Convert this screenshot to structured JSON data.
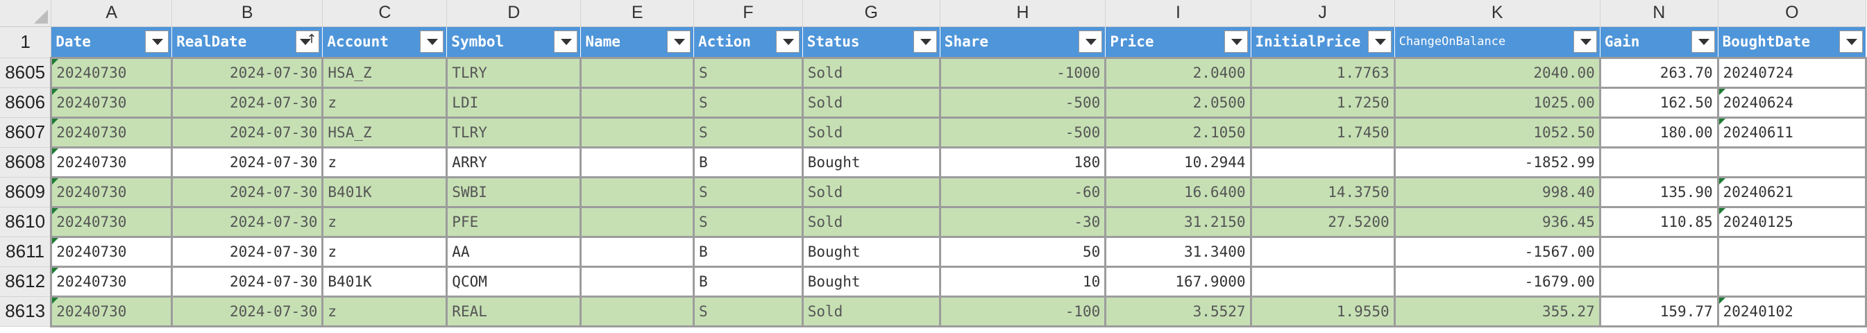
{
  "columns": [
    "A",
    "B",
    "C",
    "D",
    "E",
    "F",
    "G",
    "H",
    "I",
    "J",
    "K",
    "N",
    "O"
  ],
  "header_row_num": "1",
  "fields": [
    {
      "label": "Date",
      "sorted": false,
      "small": false
    },
    {
      "label": "RealDate",
      "sorted": true,
      "small": false
    },
    {
      "label": "Account",
      "sorted": false,
      "small": false
    },
    {
      "label": "Symbol",
      "sorted": false,
      "small": false
    },
    {
      "label": "Name",
      "sorted": false,
      "small": false
    },
    {
      "label": "Action",
      "sorted": false,
      "small": false
    },
    {
      "label": "Status",
      "sorted": false,
      "small": false
    },
    {
      "label": "Share",
      "sorted": false,
      "small": false
    },
    {
      "label": "Price",
      "sorted": false,
      "small": false
    },
    {
      "label": "InitialPrice",
      "sorted": false,
      "small": false
    },
    {
      "label": "ChangeOnBalance",
      "sorted": false,
      "small": true
    },
    {
      "label": "Gain",
      "sorted": false,
      "small": false
    },
    {
      "label": "BoughtDate",
      "sorted": false,
      "small": false
    }
  ],
  "rows": [
    {
      "num": "8605",
      "green": true,
      "date": "20240730",
      "realdate": "2024-07-30",
      "account": "HSA_Z",
      "symbol": "TLRY",
      "name": "",
      "action": "S",
      "status": "Sold",
      "share": "-1000",
      "price": "2.0400",
      "initial": "1.7763",
      "change": "2040.00",
      "gain": "263.70",
      "bought": "20240724",
      "flagA": true,
      "flagO": false
    },
    {
      "num": "8606",
      "green": true,
      "date": "20240730",
      "realdate": "2024-07-30",
      "account": "z",
      "symbol": "LDI",
      "name": "",
      "action": "S",
      "status": "Sold",
      "share": "-500",
      "price": "2.0500",
      "initial": "1.7250",
      "change": "1025.00",
      "gain": "162.50",
      "bought": "20240624",
      "flagA": true,
      "flagO": true
    },
    {
      "num": "8607",
      "green": true,
      "date": "20240730",
      "realdate": "2024-07-30",
      "account": "HSA_Z",
      "symbol": "TLRY",
      "name": "",
      "action": "S",
      "status": "Sold",
      "share": "-500",
      "price": "2.1050",
      "initial": "1.7450",
      "change": "1052.50",
      "gain": "180.00",
      "bought": "20240611",
      "flagA": true,
      "flagO": true
    },
    {
      "num": "8608",
      "green": false,
      "date": "20240730",
      "realdate": "2024-07-30",
      "account": "z",
      "symbol": "ARRY",
      "name": "",
      "action": "B",
      "status": "Bought",
      "share": "180",
      "price": "10.2944",
      "initial": "",
      "change": "-1852.99",
      "gain": "",
      "bought": "",
      "flagA": true,
      "flagO": false
    },
    {
      "num": "8609",
      "green": true,
      "date": "20240730",
      "realdate": "2024-07-30",
      "account": "B401K",
      "symbol": "SWBI",
      "name": "",
      "action": "S",
      "status": "Sold",
      "share": "-60",
      "price": "16.6400",
      "initial": "14.3750",
      "change": "998.40",
      "gain": "135.90",
      "bought": "20240621",
      "flagA": true,
      "flagO": true
    },
    {
      "num": "8610",
      "green": true,
      "date": "20240730",
      "realdate": "2024-07-30",
      "account": "z",
      "symbol": "PFE",
      "name": "",
      "action": "S",
      "status": "Sold",
      "share": "-30",
      "price": "31.2150",
      "initial": "27.5200",
      "change": "936.45",
      "gain": "110.85",
      "bought": "20240125",
      "flagA": true,
      "flagO": true
    },
    {
      "num": "8611",
      "green": false,
      "date": "20240730",
      "realdate": "2024-07-30",
      "account": "z",
      "symbol": "AA",
      "name": "",
      "action": "B",
      "status": "Bought",
      "share": "50",
      "price": "31.3400",
      "initial": "",
      "change": "-1567.00",
      "gain": "",
      "bought": "",
      "flagA": true,
      "flagO": false
    },
    {
      "num": "8612",
      "green": false,
      "date": "20240730",
      "realdate": "2024-07-30",
      "account": "B401K",
      "symbol": "QCOM",
      "name": "",
      "action": "B",
      "status": "Bought",
      "share": "10",
      "price": "167.9000",
      "initial": "",
      "change": "-1679.00",
      "gain": "",
      "bought": "",
      "flagA": true,
      "flagO": false
    },
    {
      "num": "8613",
      "green": true,
      "date": "20240730",
      "realdate": "2024-07-30",
      "account": "z",
      "symbol": "REAL",
      "name": "",
      "action": "S",
      "status": "Sold",
      "share": "-100",
      "price": "3.5527",
      "initial": "1.9550",
      "change": "355.27",
      "gain": "159.77",
      "bought": "20240102",
      "flagA": true,
      "flagO": true
    }
  ]
}
